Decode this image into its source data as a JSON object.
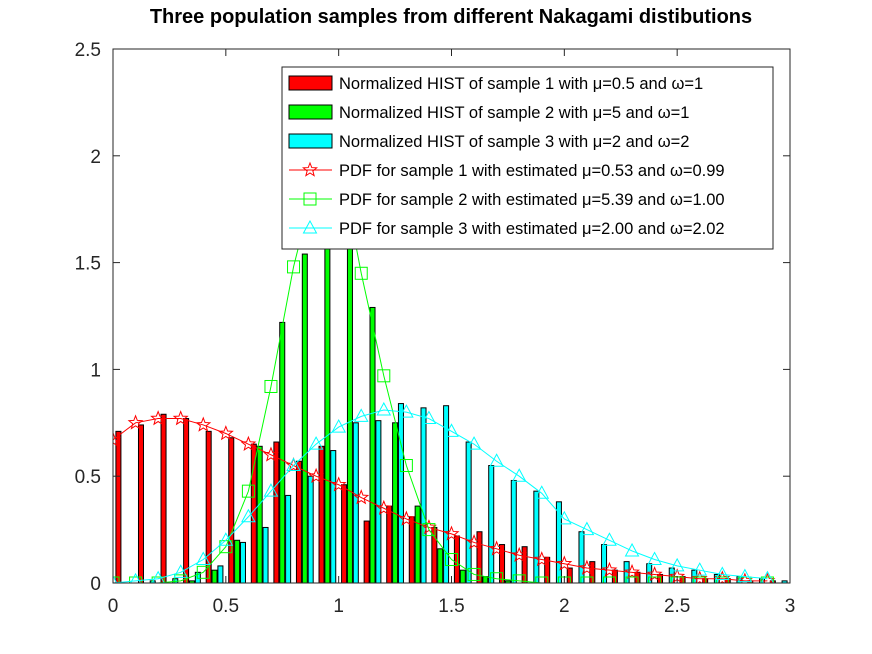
{
  "chart_data": {
    "type": "bar",
    "title": "Three population samples from different Nakagami distibutions",
    "xlabel": "",
    "ylabel": "",
    "xlim": [
      0,
      3
    ],
    "ylim": [
      0,
      2.5
    ],
    "xticks": [
      0,
      0.5,
      1,
      1.5,
      2,
      2.5,
      3
    ],
    "xtick_labels": [
      "0",
      "0.5",
      "1",
      "1.5",
      "2",
      "2.5",
      "3"
    ],
    "yticks": [
      0,
      0.5,
      1,
      1.5,
      2,
      2.5
    ],
    "ytick_labels": [
      "0",
      "0.5",
      "1",
      "1.5",
      "2",
      "2.5"
    ],
    "grid": false,
    "legend_position": "top-right",
    "bins": [
      0.05,
      0.15,
      0.25,
      0.35,
      0.45,
      0.55,
      0.65,
      0.75,
      0.85,
      0.95,
      1.05,
      1.15,
      1.25,
      1.35,
      1.45,
      1.55,
      1.65,
      1.75,
      1.85,
      1.95,
      2.05,
      2.15,
      2.25,
      2.35,
      2.45,
      2.55,
      2.65,
      2.75,
      2.85,
      2.95
    ],
    "series": [
      {
        "name": "Normalized HIST of sample 1 with μ=0.5 and ω=1",
        "type": "bar",
        "color": "#ff0000",
        "values": [
          0.71,
          0.74,
          0.79,
          0.77,
          0.71,
          0.68,
          0.65,
          0.66,
          0.57,
          0.64,
          0.46,
          0.29,
          0.36,
          0.31,
          0.26,
          0.22,
          0.24,
          0.18,
          0.17,
          0.12,
          0.07,
          0.1,
          0.06,
          0.05,
          0.04,
          0.03,
          0.02,
          0.02,
          0.01,
          0.01
        ]
      },
      {
        "name": "Normalized HIST of sample 2 with μ=5 and ω=1",
        "type": "bar",
        "color": "#00ff00",
        "values": [
          0,
          0,
          0,
          0.01,
          0.06,
          0.2,
          0.64,
          1.22,
          1.54,
          2.36,
          2.0,
          1.29,
          0.75,
          0.36,
          0.16,
          0.06,
          0.03,
          0.01,
          0,
          0,
          0,
          0,
          0,
          0,
          0,
          0,
          0,
          0,
          0,
          0
        ]
      },
      {
        "name": "Normalized HIST of sample 3 with μ=2 and ω=2",
        "type": "bar",
        "color": "#00ffff",
        "values": [
          0,
          0.01,
          0.02,
          0.05,
          0.08,
          0.19,
          0.26,
          0.41,
          0.5,
          0.62,
          0.75,
          0.76,
          0.84,
          0.82,
          0.83,
          0.66,
          0.55,
          0.48,
          0.43,
          0.38,
          0.24,
          0.18,
          0.1,
          0.09,
          0.07,
          0.06,
          0.04,
          0.03,
          0.02,
          0.01
        ]
      },
      {
        "name": "PDF for sample 1 with estimated μ=0.53 and ω=0.99",
        "type": "line",
        "marker": "star",
        "color": "#ff0000",
        "x": [
          0,
          0.1,
          0.2,
          0.3,
          0.4,
          0.5,
          0.6,
          0.7,
          0.8,
          0.9,
          1.0,
          1.1,
          1.2,
          1.3,
          1.4,
          1.5,
          1.6,
          1.7,
          1.8,
          1.9,
          2.0,
          2.1,
          2.2,
          2.3,
          2.4,
          2.5,
          2.6,
          2.7,
          2.8,
          2.9
        ],
        "values": [
          0.67,
          0.75,
          0.77,
          0.77,
          0.74,
          0.7,
          0.65,
          0.6,
          0.55,
          0.5,
          0.46,
          0.4,
          0.35,
          0.3,
          0.26,
          0.23,
          0.19,
          0.16,
          0.13,
          0.11,
          0.09,
          0.07,
          0.06,
          0.05,
          0.04,
          0.03,
          0.02,
          0.02,
          0.01,
          0.01
        ]
      },
      {
        "name": "PDF for sample 2 with estimated μ=5.39 and ω=1.00",
        "type": "line",
        "marker": "square",
        "color": "#00ff00",
        "x": [
          0,
          0.1,
          0.2,
          0.3,
          0.4,
          0.5,
          0.6,
          0.7,
          0.8,
          0.9,
          1.0,
          1.1,
          1.2,
          1.3,
          1.4,
          1.5,
          1.6,
          1.7,
          1.8,
          1.9,
          2.0,
          2.1,
          2.2,
          2.3,
          2.4,
          2.5,
          2.6,
          2.7,
          2.8,
          2.9
        ],
        "values": [
          0,
          0,
          0,
          0.01,
          0.05,
          0.17,
          0.43,
          0.92,
          1.48,
          1.9,
          2.0,
          1.45,
          0.97,
          0.55,
          0.25,
          0.11,
          0.04,
          0.02,
          0.01,
          0,
          0,
          0,
          0,
          0,
          0,
          0,
          0,
          0,
          0,
          0
        ]
      },
      {
        "name": "PDF for sample 3 with estimated μ=2.00 and ω=2.02",
        "type": "line",
        "marker": "triangle",
        "color": "#00ffff",
        "x": [
          0,
          0.1,
          0.2,
          0.3,
          0.4,
          0.5,
          0.6,
          0.7,
          0.8,
          0.9,
          1.0,
          1.1,
          1.2,
          1.3,
          1.4,
          1.5,
          1.6,
          1.7,
          1.8,
          1.9,
          2.0,
          2.1,
          2.2,
          2.3,
          2.4,
          2.5,
          2.6,
          2.7,
          2.8,
          2.9
        ],
        "values": [
          0,
          0.01,
          0.02,
          0.05,
          0.11,
          0.2,
          0.31,
          0.43,
          0.55,
          0.65,
          0.73,
          0.78,
          0.81,
          0.8,
          0.77,
          0.71,
          0.65,
          0.57,
          0.5,
          0.42,
          0.3,
          0.25,
          0.2,
          0.15,
          0.11,
          0.08,
          0.06,
          0.04,
          0.03,
          0.02
        ]
      }
    ]
  }
}
